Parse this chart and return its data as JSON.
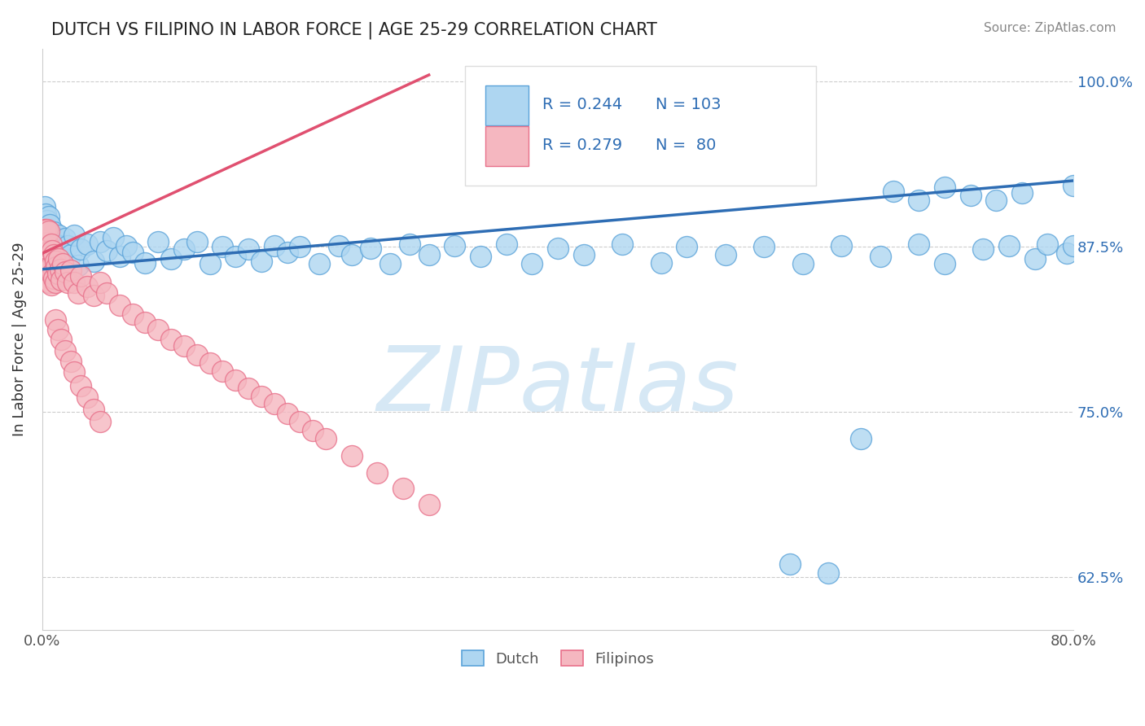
{
  "title": "DUTCH VS FILIPINO IN LABOR FORCE | AGE 25-29 CORRELATION CHART",
  "source_text": "Source: ZipAtlas.com",
  "ylabel": "In Labor Force | Age 25-29",
  "x_min": 0.0,
  "x_max": 0.8,
  "y_min": 0.585,
  "y_max": 1.025,
  "y_ticks": [
    0.625,
    0.75,
    0.875,
    1.0
  ],
  "y_tick_labels": [
    "62.5%",
    "75.0%",
    "87.5%",
    "100.0%"
  ],
  "dutch_R": 0.244,
  "dutch_N": 103,
  "filipino_R": 0.279,
  "filipino_N": 80,
  "dutch_color": "#AED6F1",
  "dutch_edge_color": "#5BA3D9",
  "dutch_line_color": "#2E6DB4",
  "filipino_color": "#F5B7C0",
  "filipino_edge_color": "#E8708A",
  "filipino_line_color": "#E05070",
  "watermark_color": "#D6E8F5",
  "legend_R_color": "#2E6DB4",
  "title_color": "#222222",
  "source_color": "#888888",
  "grid_color": "#CCCCCC",
  "tick_label_color": "#555555",
  "right_tick_color": "#2E6DB4",
  "dutch_x": [
    0.001,
    0.001,
    0.002,
    0.002,
    0.002,
    0.002,
    0.003,
    0.003,
    0.003,
    0.003,
    0.003,
    0.004,
    0.004,
    0.004,
    0.004,
    0.005,
    0.005,
    0.005,
    0.005,
    0.006,
    0.006,
    0.006,
    0.007,
    0.007,
    0.007,
    0.008,
    0.008,
    0.009,
    0.009,
    0.01,
    0.01,
    0.011,
    0.012,
    0.013,
    0.014,
    0.015,
    0.016,
    0.018,
    0.02,
    0.022,
    0.025,
    0.028,
    0.03,
    0.035,
    0.04,
    0.045,
    0.05,
    0.055,
    0.06,
    0.065,
    0.07,
    0.08,
    0.09,
    0.1,
    0.11,
    0.12,
    0.13,
    0.14,
    0.15,
    0.16,
    0.17,
    0.18,
    0.19,
    0.2,
    0.215,
    0.23,
    0.24,
    0.255,
    0.27,
    0.285,
    0.3,
    0.32,
    0.34,
    0.36,
    0.38,
    0.4,
    0.42,
    0.45,
    0.48,
    0.5,
    0.53,
    0.56,
    0.59,
    0.62,
    0.65,
    0.68,
    0.7,
    0.73,
    0.75,
    0.77,
    0.78,
    0.795,
    0.8,
    0.8,
    0.76,
    0.74,
    0.72,
    0.7,
    0.68,
    0.66,
    0.635,
    0.61,
    0.58
  ],
  "dutch_y": [
    0.882,
    0.895,
    0.878,
    0.891,
    0.87,
    0.905,
    0.875,
    0.888,
    0.863,
    0.9,
    0.872,
    0.88,
    0.858,
    0.895,
    0.868,
    0.882,
    0.855,
    0.898,
    0.871,
    0.877,
    0.86,
    0.892,
    0.873,
    0.883,
    0.86,
    0.879,
    0.864,
    0.886,
    0.867,
    0.882,
    0.86,
    0.877,
    0.872,
    0.884,
    0.876,
    0.868,
    0.875,
    0.881,
    0.876,
    0.869,
    0.884,
    0.861,
    0.873,
    0.877,
    0.864,
    0.879,
    0.872,
    0.882,
    0.868,
    0.876,
    0.871,
    0.863,
    0.879,
    0.866,
    0.873,
    0.879,
    0.862,
    0.875,
    0.868,
    0.873,
    0.864,
    0.876,
    0.871,
    0.875,
    0.862,
    0.876,
    0.869,
    0.874,
    0.862,
    0.877,
    0.869,
    0.876,
    0.868,
    0.877,
    0.862,
    0.874,
    0.869,
    0.877,
    0.863,
    0.875,
    0.869,
    0.875,
    0.862,
    0.876,
    0.868,
    0.877,
    0.862,
    0.873,
    0.876,
    0.866,
    0.877,
    0.87,
    0.876,
    0.921,
    0.916,
    0.91,
    0.914,
    0.92,
    0.91,
    0.917,
    0.73,
    0.628,
    0.635
  ],
  "filipino_x": [
    0.001,
    0.001,
    0.001,
    0.002,
    0.002,
    0.002,
    0.002,
    0.003,
    0.003,
    0.003,
    0.003,
    0.003,
    0.003,
    0.004,
    0.004,
    0.004,
    0.004,
    0.005,
    0.005,
    0.005,
    0.005,
    0.006,
    0.006,
    0.006,
    0.007,
    0.007,
    0.007,
    0.008,
    0.008,
    0.009,
    0.009,
    0.01,
    0.01,
    0.011,
    0.012,
    0.013,
    0.014,
    0.015,
    0.016,
    0.018,
    0.02,
    0.022,
    0.025,
    0.028,
    0.03,
    0.035,
    0.04,
    0.045,
    0.05,
    0.06,
    0.07,
    0.08,
    0.09,
    0.1,
    0.11,
    0.12,
    0.13,
    0.14,
    0.15,
    0.16,
    0.17,
    0.18,
    0.19,
    0.2,
    0.21,
    0.22,
    0.24,
    0.26,
    0.28,
    0.3,
    0.01,
    0.012,
    0.015,
    0.018,
    0.022,
    0.025,
    0.03,
    0.035,
    0.04,
    0.045
  ],
  "filipino_y": [
    0.88,
    0.868,
    0.858,
    0.875,
    0.865,
    0.855,
    0.888,
    0.875,
    0.862,
    0.85,
    0.888,
    0.87,
    0.858,
    0.878,
    0.862,
    0.85,
    0.888,
    0.875,
    0.86,
    0.848,
    0.887,
    0.872,
    0.858,
    0.848,
    0.877,
    0.861,
    0.846,
    0.872,
    0.855,
    0.869,
    0.851,
    0.864,
    0.848,
    0.86,
    0.855,
    0.866,
    0.858,
    0.85,
    0.862,
    0.856,
    0.848,
    0.857,
    0.848,
    0.84,
    0.853,
    0.845,
    0.838,
    0.848,
    0.84,
    0.831,
    0.824,
    0.818,
    0.812,
    0.805,
    0.8,
    0.793,
    0.787,
    0.781,
    0.774,
    0.768,
    0.762,
    0.756,
    0.749,
    0.743,
    0.736,
    0.73,
    0.717,
    0.704,
    0.692,
    0.68,
    0.82,
    0.812,
    0.805,
    0.796,
    0.788,
    0.78,
    0.77,
    0.761,
    0.752,
    0.743
  ],
  "dutch_trendline_x": [
    0.0,
    0.8
  ],
  "dutch_trendline_y": [
    0.858,
    0.925
  ],
  "fil_trendline_x": [
    0.0,
    0.3
  ],
  "fil_trendline_y": [
    0.87,
    1.005
  ]
}
